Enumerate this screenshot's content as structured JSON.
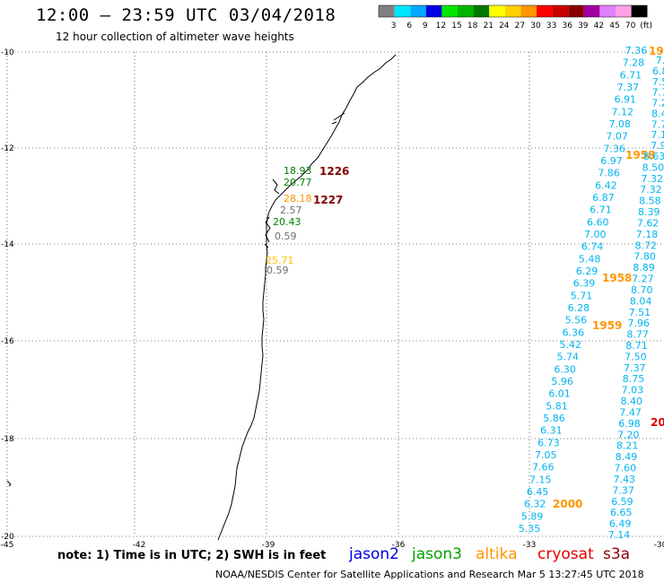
{
  "header": {
    "title": "12:00 — 23:59 UTC 03/04/2018",
    "subtitle": "12 hour collection of altimeter wave heights"
  },
  "scale": {
    "labels": [
      "3",
      "6",
      "9",
      "12",
      "15",
      "18",
      "21",
      "24",
      "27",
      "30",
      "33",
      "36",
      "39",
      "42",
      "45",
      "70",
      "(ft)"
    ],
    "colors": [
      "#808080",
      "#00e6ff",
      "#00a8ff",
      "#0000e6",
      "#00e600",
      "#00b400",
      "#007800",
      "#ffff00",
      "#ffd200",
      "#ff9600",
      "#ff0000",
      "#c80000",
      "#8c0000",
      "#a000a0",
      "#e080ff",
      "#ffa0e6",
      "#000000"
    ]
  },
  "axes": {
    "lat_ticks": [
      "-10",
      "-12",
      "-14",
      "-16",
      "-18",
      "-20"
    ],
    "lon_ticks": [
      "-45",
      "-42",
      "-39",
      "-36",
      "-33",
      "-30"
    ]
  },
  "footer": {
    "note": "note: 1) Time is in UTC; 2) SWH is in feet",
    "credit": "NOAA/NESDIS Center for Satellite Applications and Research   Mar  5 13:27:45 UTC 2018",
    "satellites": [
      {
        "name": "jason2",
        "color": "#0000e6"
      },
      {
        "name": "jason3",
        "color": "#00a000"
      },
      {
        "name": "altika",
        "color": "#ff9600"
      },
      {
        "name": "cryosat",
        "color": "#e00000"
      },
      {
        "name": "s3a",
        "color": "#8c0000"
      }
    ]
  },
  "near_coast": [
    {
      "v": "18.93",
      "c": "#008000"
    },
    {
      "v": "20.77",
      "c": "#008000"
    },
    {
      "v": "28.18",
      "c": "#ff9600"
    },
    {
      "v": "2.57",
      "c": "#707070"
    },
    {
      "v": "20.43",
      "c": "#008000"
    },
    {
      "v": "0.59",
      "c": "#707070"
    },
    {
      "v": "25.71",
      "c": "#ffc000"
    },
    {
      "v": "0.59",
      "c": "#707070"
    }
  ],
  "pass_times": [
    {
      "t": "1226",
      "c": "#800000"
    },
    {
      "t": "1227",
      "c": "#800000"
    },
    {
      "t": "1958",
      "c": "#ff9600"
    },
    {
      "t": "1958",
      "c": "#ff9600"
    },
    {
      "t": "1959",
      "c": "#ff9600"
    },
    {
      "t": "2000",
      "c": "#ff9600"
    },
    {
      "t": "19",
      "c": "#ff9600"
    },
    {
      "t": "20",
      "c": "#e00000"
    }
  ],
  "track_a": [
    "7.36",
    "7.28",
    "6.71",
    "7.37",
    "6.91",
    "7.12",
    "7.08",
    "7.07",
    "7.36",
    "6.97",
    "7.86",
    "6.42",
    "6.87",
    "6.71",
    "6.60",
    "7.00",
    "6.74",
    "5.48",
    "6.29",
    "6.39",
    "5.71",
    "6.28",
    "5.56",
    "6.36",
    "5.42",
    "5.74",
    "6.30",
    "5.96",
    "6.01",
    "5.81",
    "5.86",
    "6.31",
    "6.73",
    "7.05",
    "7.66",
    "7.15",
    "6.45",
    "6.32",
    "5.89",
    "5.35"
  ],
  "track_b": [
    "8.63",
    "8.50",
    "7.32",
    "7.32",
    "8.58",
    "8.39",
    "7.62",
    "7.18",
    "8.72",
    "7.80",
    "8.89",
    "7.27",
    "8.70",
    "8.04",
    "7.51",
    "7.96",
    "8.77",
    "8.71",
    "7.50",
    "7.37",
    "8.75",
    "7.03",
    "8.40",
    "7.47",
    "6.98",
    "7.20",
    "8.21",
    "8.49",
    "7.60",
    "7.43",
    "7.37",
    "6.59",
    "6.65",
    "6.49",
    "7.14"
  ],
  "track_c": [
    "7.",
    "6.8",
    "7.5",
    "7.7",
    "7.2",
    "8.4",
    "7.7",
    "7.1",
    "7.9"
  ]
}
